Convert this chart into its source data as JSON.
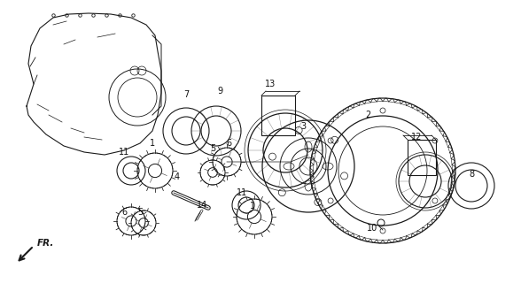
{
  "background_color": "#ffffff",
  "line_color": "#1a1a1a",
  "fig_width": 5.88,
  "fig_height": 3.2,
  "dpi": 100,
  "labels": [
    [
      "7",
      215,
      118
    ],
    [
      "9",
      246,
      112
    ],
    [
      "13",
      305,
      100
    ],
    [
      "3",
      340,
      148
    ],
    [
      "2",
      412,
      138
    ],
    [
      "11",
      145,
      178
    ],
    [
      "1",
      172,
      175
    ],
    [
      "5",
      242,
      185
    ],
    [
      "6",
      257,
      176
    ],
    [
      "4",
      206,
      208
    ],
    [
      "14",
      227,
      236
    ],
    [
      "6",
      144,
      245
    ],
    [
      "5",
      158,
      248
    ],
    [
      "11",
      273,
      228
    ],
    [
      "1",
      284,
      240
    ],
    [
      "12",
      470,
      172
    ],
    [
      "8",
      530,
      210
    ],
    [
      "10",
      413,
      255
    ]
  ]
}
